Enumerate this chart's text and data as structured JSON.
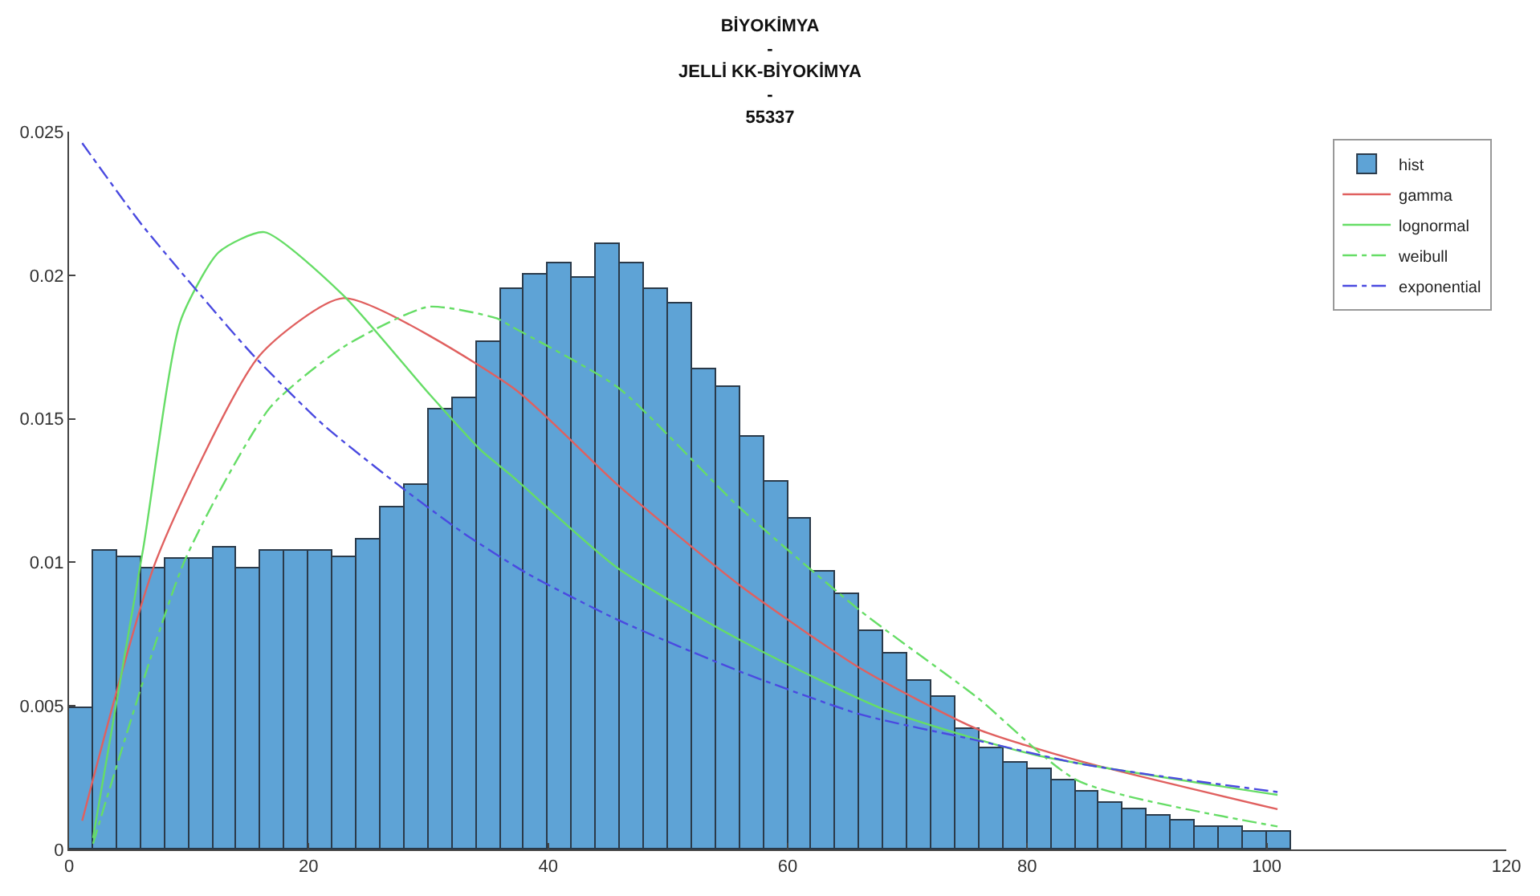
{
  "chart_data": {
    "type": "histogram",
    "title": "BİYOKİMYA\n-\nJELLİ KK-BİYOKİMYA\n-\n55337",
    "bins": [
      0,
      2,
      4,
      6,
      8,
      10,
      12,
      14,
      16,
      18,
      20,
      22,
      24,
      26,
      28,
      30,
      32,
      34,
      36,
      38,
      40,
      42,
      44,
      46,
      48,
      50,
      52,
      54,
      56,
      58,
      60,
      62,
      64,
      66,
      68,
      70,
      72,
      74,
      76,
      78,
      80,
      82,
      84,
      86,
      88,
      90,
      92,
      94,
      96,
      98,
      100,
      102
    ],
    "series": [
      {
        "name": "hist",
        "color": "#5ea3d6",
        "values": [
          0.0049,
          0.0104,
          0.0102,
          0.0098,
          0.0101,
          0.0101,
          0.0105,
          0.0098,
          0.0104,
          0.0104,
          0.0104,
          0.0102,
          0.0108,
          0.0119,
          0.0127,
          0.0153,
          0.0157,
          0.0177,
          0.0195,
          0.02,
          0.0204,
          0.0199,
          0.0211,
          0.0204,
          0.0195,
          0.019,
          0.0167,
          0.0161,
          0.0144,
          0.0128,
          0.0115,
          0.0097,
          0.0089,
          0.0076,
          0.0068,
          0.0059,
          0.0053,
          0.0042,
          0.0035,
          0.003,
          0.0028,
          0.0024,
          0.002,
          0.0016,
          0.0014,
          0.0012,
          0.001,
          0.0008,
          0.0008,
          0.0006,
          0.0006
        ]
      },
      {
        "name": "gamma",
        "type": "line",
        "color": "#e0605f",
        "line_style": "solid",
        "x": [
          1.1,
          7.3,
          15.9,
          22.9,
          37.0,
          45.8,
          56.0,
          66.1,
          75.8,
          84.2,
          100.9
        ],
        "values": [
          0.001,
          0.0101,
          0.0172,
          0.0192,
          0.0161,
          0.0127,
          0.0092,
          0.0063,
          0.0042,
          0.0031,
          0.0014
        ]
      },
      {
        "name": "lognormal",
        "type": "line",
        "color": "#66dd66",
        "line_style": "solid",
        "x": [
          2.0,
          6.2,
          9.3,
          12.5,
          16.3,
          22.9,
          30.0,
          34.4,
          37.0,
          45.8,
          56.0,
          67.9,
          80.6,
          100.9
        ],
        "values": [
          0.0004,
          0.0105,
          0.0184,
          0.0208,
          0.0215,
          0.0193,
          0.0159,
          0.0139,
          0.013,
          0.0098,
          0.0073,
          0.0049,
          0.0033,
          0.0019
        ]
      },
      {
        "name": "weibull",
        "type": "line",
        "color": "#66dd66",
        "line_style": "dashdot",
        "x": [
          2.0,
          9.7,
          16.8,
          22.9,
          30.0,
          35.7,
          37.0,
          45.8,
          56.0,
          66.1,
          75.8,
          84.2,
          100.9
        ],
        "values": [
          0.0002,
          0.0101,
          0.0154,
          0.0175,
          0.0189,
          0.0185,
          0.0182,
          0.0161,
          0.0119,
          0.0083,
          0.0053,
          0.0024,
          0.0008
        ]
      },
      {
        "name": "exponential",
        "type": "line",
        "color": "#4a4ae0",
        "line_style": "dashdot",
        "x": [
          1.1,
          6.0,
          11.0,
          15.4,
          21.2,
          28.1,
          33.0,
          38.3,
          45.8,
          56.0,
          66.1,
          75.8,
          84.2,
          92.0,
          100.9
        ],
        "values": [
          0.0246,
          0.0218,
          0.0193,
          0.0172,
          0.0148,
          0.0125,
          0.011,
          0.0096,
          0.008,
          0.0062,
          0.0047,
          0.0038,
          0.003,
          0.0025,
          0.002
        ]
      }
    ],
    "xlim": [
      0,
      120
    ],
    "xticks": [
      0,
      20,
      40,
      60,
      80,
      100,
      120
    ],
    "ylim": [
      0,
      0.025
    ],
    "yticks": [
      0,
      0.005,
      0.01,
      0.015,
      0.02,
      0.025
    ],
    "legend": "top right"
  }
}
